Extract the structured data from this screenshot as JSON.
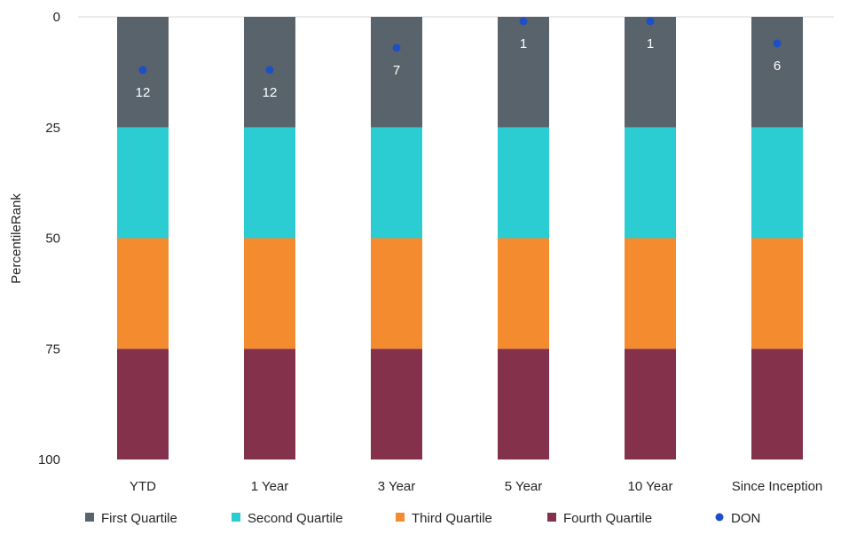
{
  "chart_data": {
    "type": "bar",
    "stacked": true,
    "categories": [
      "YTD",
      "1 Year",
      "3 Year",
      "5 Year",
      "10 Year",
      "Since Inception"
    ],
    "series": [
      {
        "name": "First Quartile",
        "values": [
          25,
          25,
          25,
          25,
          25,
          25
        ],
        "color": "#59636b"
      },
      {
        "name": "Second Quartile",
        "values": [
          25,
          25,
          25,
          25,
          25,
          25
        ],
        "color": "#2bccd2"
      },
      {
        "name": "Third Quartile",
        "values": [
          25,
          25,
          25,
          25,
          25,
          25
        ],
        "color": "#f48b2f"
      },
      {
        "name": "Fourth Quartile",
        "values": [
          25,
          25,
          25,
          25,
          25,
          25
        ],
        "color": "#84314b"
      }
    ],
    "points": {
      "name": "DON",
      "values": [
        12,
        12,
        7,
        1,
        1,
        6
      ],
      "labels": [
        "12",
        "12",
        "7",
        "1",
        "1",
        "6"
      ],
      "color": "#1f4fc4"
    },
    "ylabel": "PercentileRank",
    "ylim": [
      0,
      100
    ],
    "y_reversed": true,
    "yticks": [
      "0",
      "25",
      "50",
      "75",
      "100"
    ],
    "grid": false,
    "legend": "bottom"
  }
}
